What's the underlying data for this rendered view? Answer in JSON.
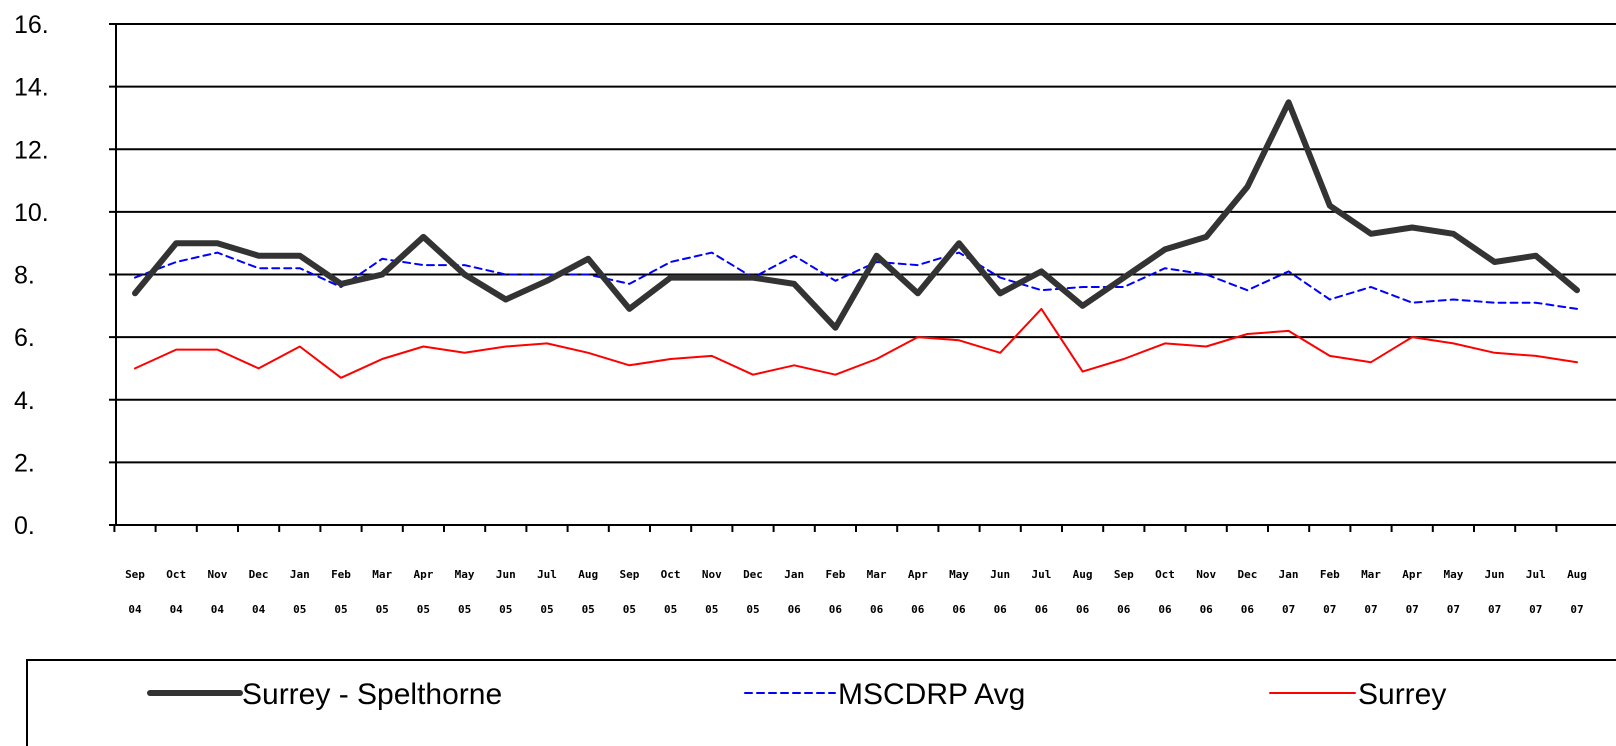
{
  "chart_data": {
    "type": "line",
    "title": "",
    "xlabel": "",
    "ylabel": "",
    "ylim": [
      0,
      16
    ],
    "y_ticks": [
      "0.",
      "2.",
      "4.",
      "6.",
      "8.",
      "10.",
      "12.",
      "14.",
      "16."
    ],
    "grid": "horizontal",
    "legend_position": "bottom",
    "categories": [
      {
        "month": "Sep",
        "year": "04"
      },
      {
        "month": "Oct",
        "year": "04"
      },
      {
        "month": "Nov",
        "year": "04"
      },
      {
        "month": "Dec",
        "year": "04"
      },
      {
        "month": "Jan",
        "year": "05"
      },
      {
        "month": "Feb",
        "year": "05"
      },
      {
        "month": "Mar",
        "year": "05"
      },
      {
        "month": "Apr",
        "year": "05"
      },
      {
        "month": "May",
        "year": "05"
      },
      {
        "month": "Jun",
        "year": "05"
      },
      {
        "month": "Jul",
        "year": "05"
      },
      {
        "month": "Aug",
        "year": "05"
      },
      {
        "month": "Sep",
        "year": "05"
      },
      {
        "month": "Oct",
        "year": "05"
      },
      {
        "month": "Nov",
        "year": "05"
      },
      {
        "month": "Dec",
        "year": "05"
      },
      {
        "month": "Jan",
        "year": "06"
      },
      {
        "month": "Feb",
        "year": "06"
      },
      {
        "month": "Mar",
        "year": "06"
      },
      {
        "month": "Apr",
        "year": "06"
      },
      {
        "month": "May",
        "year": "06"
      },
      {
        "month": "Jun",
        "year": "06"
      },
      {
        "month": "Jul",
        "year": "06"
      },
      {
        "month": "Aug",
        "year": "06"
      },
      {
        "month": "Sep",
        "year": "06"
      },
      {
        "month": "Oct",
        "year": "06"
      },
      {
        "month": "Nov",
        "year": "06"
      },
      {
        "month": "Dec",
        "year": "06"
      },
      {
        "month": "Jan",
        "year": "07"
      },
      {
        "month": "Feb",
        "year": "07"
      },
      {
        "month": "Mar",
        "year": "07"
      },
      {
        "month": "Apr",
        "year": "07"
      },
      {
        "month": "May",
        "year": "07"
      },
      {
        "month": "Jun",
        "year": "07"
      },
      {
        "month": "Jul",
        "year": "07"
      },
      {
        "month": "Aug",
        "year": "07"
      }
    ],
    "series": [
      {
        "name": "Surrey - Spelthorne",
        "color": "#333333",
        "style": "solid-thick",
        "values": [
          7.4,
          9.0,
          9.0,
          8.6,
          8.6,
          7.7,
          8.0,
          9.2,
          8.0,
          7.2,
          7.8,
          8.5,
          6.9,
          7.9,
          7.9,
          7.9,
          7.7,
          6.3,
          8.6,
          7.4,
          9.0,
          7.4,
          8.1,
          7.0,
          7.9,
          8.8,
          9.2,
          10.8,
          13.5,
          10.2,
          9.3,
          9.5,
          9.3,
          8.4,
          8.6,
          7.5
        ]
      },
      {
        "name": "MSCDRP Avg",
        "color": "#0000ff",
        "style": "dashed",
        "values": [
          7.9,
          8.4,
          8.7,
          8.2,
          8.2,
          7.6,
          8.5,
          8.3,
          8.3,
          8.0,
          8.0,
          8.0,
          7.7,
          8.4,
          8.7,
          7.9,
          8.6,
          7.8,
          8.4,
          8.3,
          8.7,
          7.9,
          7.5,
          7.6,
          7.6,
          8.2,
          8.0,
          7.5,
          8.1,
          7.2,
          7.6,
          7.1,
          7.2,
          7.1,
          7.1,
          6.9
        ]
      },
      {
        "name": "Surrey",
        "color": "#ff0000",
        "style": "solid-thin",
        "values": [
          5.0,
          5.6,
          5.6,
          5.0,
          5.7,
          4.7,
          5.3,
          5.7,
          5.5,
          5.7,
          5.8,
          5.5,
          5.1,
          5.3,
          5.4,
          4.8,
          5.1,
          4.8,
          5.3,
          6.0,
          5.9,
          5.5,
          6.9,
          4.9,
          5.3,
          5.8,
          5.7,
          6.1,
          6.2,
          5.4,
          5.2,
          6.0,
          5.8,
          5.5,
          5.4,
          5.2
        ]
      }
    ]
  }
}
